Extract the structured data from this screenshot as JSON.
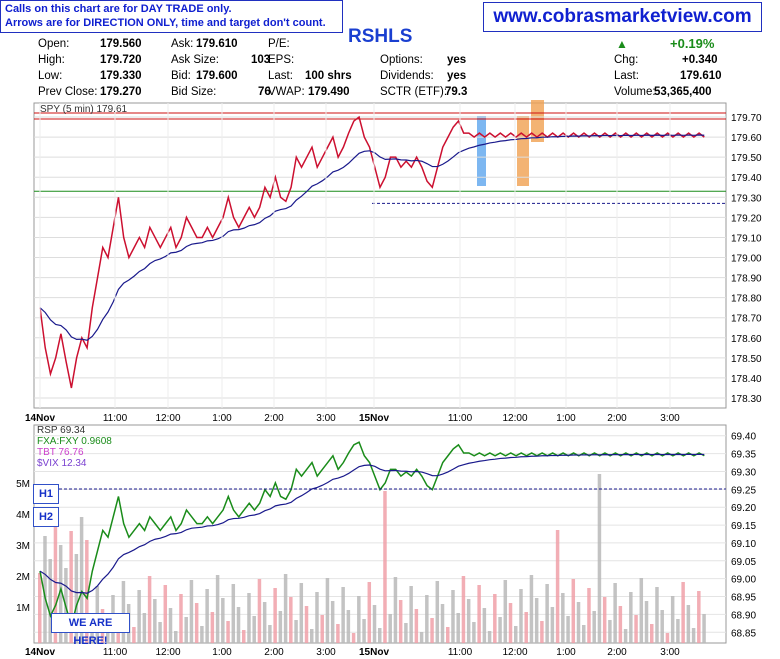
{
  "notice": {
    "line1": "Calls on this chart are for DAY TRADE only.",
    "line2": "Arrows are for DIRECTION ONLY, time and target don't count."
  },
  "site_url": "www.cobrasmarketview.com",
  "symbol": "RSHLS",
  "quote": {
    "open_label": "Open:",
    "open": "179.560",
    "high_label": "High:",
    "high": "179.720",
    "low_label": "Low:",
    "low": "179.330",
    "prev_close_label": "Prev Close:",
    "prev_close": "179.270",
    "ask_label": "Ask:",
    "ask": "179.610",
    "ask_size_label": "Ask Size:",
    "ask_size": "103",
    "bid_label": "Bid:",
    "bid": "179.600",
    "bid_size_label": "Bid Size:",
    "bid_size": "76",
    "pe_label": "P/E:",
    "eps_label": "EPS:",
    "last_size_label": "Last:",
    "last_size": "100 shrs",
    "vwap_label": "VWAP:",
    "vwap": "179.490",
    "options_label": "Options:",
    "options": "yes",
    "dividends_label": "Dividends:",
    "dividends": "yes",
    "sctr_label": "SCTR (ETF):",
    "sctr": "79.3",
    "change_pct": "+0.19%",
    "chg_label": "Chg:",
    "chg": "+0.340",
    "last_label": "Last:",
    "last": "179.610",
    "volume_label": "Volume:",
    "volume": "53,365,400"
  },
  "colors": {
    "up": "#1a8c1a",
    "down": "#cc1030",
    "vwap_line": "#1a1a8c",
    "resistance": "#cc1010",
    "support": "#1a8c1a",
    "blue_zone": "#66aaee",
    "orange_zone": "#f0a050"
  },
  "chart_data": [
    {
      "type": "line",
      "title": "SPY (5 min) 179.61",
      "x_ticks": [
        "14Nov",
        "11:00",
        "12:00",
        "1:00",
        "2:00",
        "3:00",
        "15Nov",
        "11:00",
        "12:00",
        "1:00",
        "2:00",
        "3:00"
      ],
      "y_ticks": [
        "179.70",
        "179.60",
        "179.50",
        "179.40",
        "179.30",
        "179.20",
        "179.10",
        "179.00",
        "178.90",
        "178.80",
        "178.70",
        "178.60",
        "178.50",
        "178.40",
        "178.30"
      ],
      "ylim": [
        178.25,
        179.77
      ],
      "series": [
        {
          "name": "SPY",
          "x": [
            0,
            0.5,
            1,
            1.5,
            2,
            2.5,
            3,
            3.5,
            4,
            4.5,
            5,
            5.5,
            6,
            6.5,
            7,
            7.5,
            8,
            8.5,
            9,
            9.5,
            10,
            10.5,
            11,
            11.5,
            12,
            12.5,
            13,
            13.5,
            14,
            14.5,
            15,
            15.5,
            16,
            16.5,
            17,
            17.5,
            18,
            18.5,
            19,
            19.5,
            20,
            20.5,
            21,
            21.5,
            22,
            22.5,
            23,
            23.5,
            24,
            24.5,
            25,
            25.5,
            26,
            26.5,
            27,
            27.5,
            28,
            28.5,
            29,
            29.5,
            30,
            30.5,
            31,
            31.5,
            32,
            32.5,
            33,
            33.5,
            34,
            34.5,
            35,
            35.5,
            36,
            36.5,
            37,
            37.5,
            38,
            38.5,
            39,
            39.5,
            40,
            40.5,
            41,
            41.5,
            42,
            42.5,
            43,
            43.5,
            44,
            44.5,
            45,
            45.5,
            46,
            46.5,
            47,
            47.5,
            48,
            48.5,
            49,
            49.5,
            50,
            50.5,
            51,
            51.5,
            52,
            52.5,
            53,
            53.5,
            54,
            54.5,
            55,
            55.5,
            56,
            56.5,
            57,
            57.5,
            58,
            58.5,
            59,
            59.5,
            60,
            60.5,
            61,
            61.5,
            62,
            62.5,
            63,
            63.5,
            64,
            64.5,
            65,
            65.5,
            66,
            66.5,
            67,
            67.5
          ],
          "values": [
            178.75,
            178.55,
            178.42,
            178.5,
            178.62,
            178.48,
            178.35,
            178.5,
            178.6,
            178.55,
            178.75,
            178.9,
            179.05,
            179.0,
            179.15,
            179.3,
            179.1,
            179.0,
            179.05,
            179.1,
            179.05,
            179.15,
            179.1,
            179.05,
            179.1,
            179.15,
            179.05,
            179.1,
            179.2,
            179.15,
            179.1,
            179.1,
            179.15,
            179.1,
            179.15,
            179.2,
            179.3,
            179.2,
            179.15,
            179.2,
            179.25,
            179.2,
            179.25,
            179.35,
            179.3,
            179.4,
            179.3,
            179.28,
            179.35,
            179.5,
            179.45,
            179.5,
            179.55,
            179.45,
            179.5,
            179.55,
            179.6,
            179.5,
            179.55,
            179.62,
            179.68,
            179.7,
            179.6,
            179.55,
            179.45,
            179.35,
            179.4,
            179.5,
            179.5,
            179.45,
            179.48,
            179.45,
            179.5,
            179.45,
            179.38,
            179.35,
            179.45,
            179.55,
            179.6,
            179.65,
            179.68,
            179.62,
            179.62,
            179.6,
            179.62,
            179.6,
            179.62,
            179.6,
            179.62,
            179.6,
            179.62,
            179.6,
            179.62,
            179.6,
            179.62,
            179.6,
            179.62,
            179.6,
            179.62,
            179.6,
            179.62,
            179.6,
            179.62,
            179.6,
            179.62,
            179.6,
            179.62,
            179.6,
            179.62,
            179.6,
            179.62,
            179.6,
            179.62,
            179.6,
            179.62,
            179.6,
            179.62,
            179.6,
            179.62,
            179.6,
            179.62,
            179.6,
            179.62,
            179.6,
            179.62,
            179.6,
            179.62,
            179.6,
            179.62,
            179.6,
            179.62,
            179.6,
            179.62,
            179.6,
            179.62,
            179.61
          ]
        }
      ],
      "lines": [
        {
          "name": "resistance_1",
          "value": 179.72
        },
        {
          "name": "resistance_2",
          "value": 179.69
        },
        {
          "name": "support",
          "value": 179.33
        },
        {
          "name": "prev_close",
          "value": 179.27
        }
      ]
    },
    {
      "type": "line",
      "title": "RSP 69.34",
      "legend": [
        "RSP 69.34",
        "FXA:FXY 0.9608",
        "TBT 76.76",
        "$VIX 12.34"
      ],
      "x_ticks": [
        "14Nov",
        "11:00",
        "12:00",
        "1:00",
        "2:00",
        "3:00",
        "15Nov",
        "11:00",
        "12:00",
        "1:00",
        "2:00",
        "3:00"
      ],
      "y_ticks": [
        "69.40",
        "69.35",
        "69.30",
        "69.25",
        "69.20",
        "69.15",
        "69.10",
        "69.05",
        "69.00",
        "68.95",
        "68.90",
        "68.85"
      ],
      "volume_ticks": [
        "5M",
        "4M",
        "3M",
        "2M",
        "1M"
      ],
      "ylim": [
        68.82,
        69.43
      ],
      "labels": [
        "H1",
        "H2",
        "WE ARE HERE!"
      ]
    }
  ]
}
